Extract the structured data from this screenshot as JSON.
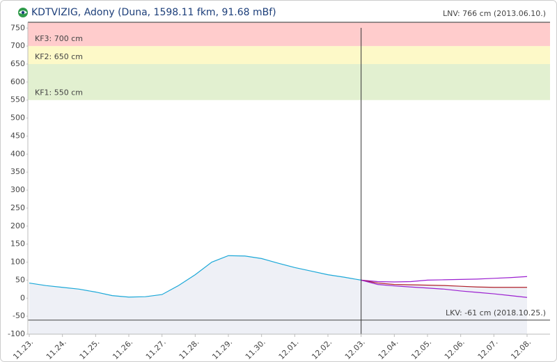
{
  "chart_data": {
    "type": "line",
    "title": "KDTVIZIG, Adony (Duna, 1598.11 fkm, 91.68 mBf)",
    "categories": [
      "11.23.",
      null,
      "11.24.",
      null,
      "11.25.",
      null,
      "11.26.",
      null,
      "11.27.",
      null,
      "11.28.",
      null,
      "11.29.",
      null,
      "11.30.",
      null,
      "12.01.",
      null,
      "12.02.",
      null,
      "12.03.",
      null,
      "12.04.",
      null,
      "12.05.",
      null,
      "12.06.",
      null,
      "12.07.",
      null,
      "12.08."
    ],
    "series": [
      {
        "color": "#1ba8d8",
        "area": true,
        "values": [
          42,
          35,
          30,
          25,
          17,
          7,
          3,
          4,
          10,
          35,
          65,
          100,
          118,
          117,
          110,
          97,
          85,
          75,
          65,
          58,
          50,
          null,
          null,
          null,
          null,
          null,
          null,
          null,
          null,
          null,
          null
        ]
      },
      {
        "color": "#9b1fd0",
        "area": false,
        "values": [
          null,
          null,
          null,
          null,
          null,
          null,
          null,
          null,
          null,
          null,
          null,
          null,
          null,
          null,
          null,
          null,
          null,
          null,
          null,
          null,
          50,
          46,
          45,
          46,
          50,
          51,
          52,
          53,
          55,
          57,
          60
        ]
      },
      {
        "color": "#b0202a",
        "area": true,
        "values": [
          null,
          null,
          null,
          null,
          null,
          null,
          null,
          null,
          null,
          null,
          null,
          null,
          null,
          null,
          null,
          null,
          null,
          null,
          null,
          null,
          50,
          42,
          38,
          37,
          36,
          35,
          33,
          31,
          30,
          30,
          30
        ]
      },
      {
        "color": "#9b1fd0",
        "area": false,
        "values": [
          null,
          null,
          null,
          null,
          null,
          null,
          null,
          null,
          null,
          null,
          null,
          null,
          null,
          null,
          null,
          null,
          null,
          null,
          null,
          null,
          50,
          38,
          34,
          31,
          28,
          25,
          20,
          16,
          12,
          7,
          2
        ]
      }
    ],
    "now": "12.03.",
    "ylim": [
      -100,
      766
    ],
    "yticks": [
      -100,
      -50,
      0,
      50,
      100,
      150,
      200,
      250,
      300,
      350,
      400,
      450,
      500,
      550,
      600,
      650,
      700,
      750
    ],
    "bands": [
      {
        "label": "KF1: 550 cm",
        "value": 550,
        "color": "#e2f0d0"
      },
      {
        "label": "KF2: 650 cm",
        "value": 650,
        "color": "#fdf9c8"
      },
      {
        "label": "KF3: 700 cm",
        "value": 700,
        "color": "#ffcccc"
      }
    ],
    "reference_lines": [
      {
        "label": "LNV: 766 cm (2013.06.10.)",
        "value": 766,
        "position": "top"
      },
      {
        "label": "LKV: -61 cm (2018.10.25.)",
        "value": -61,
        "position": "inside"
      }
    ]
  }
}
